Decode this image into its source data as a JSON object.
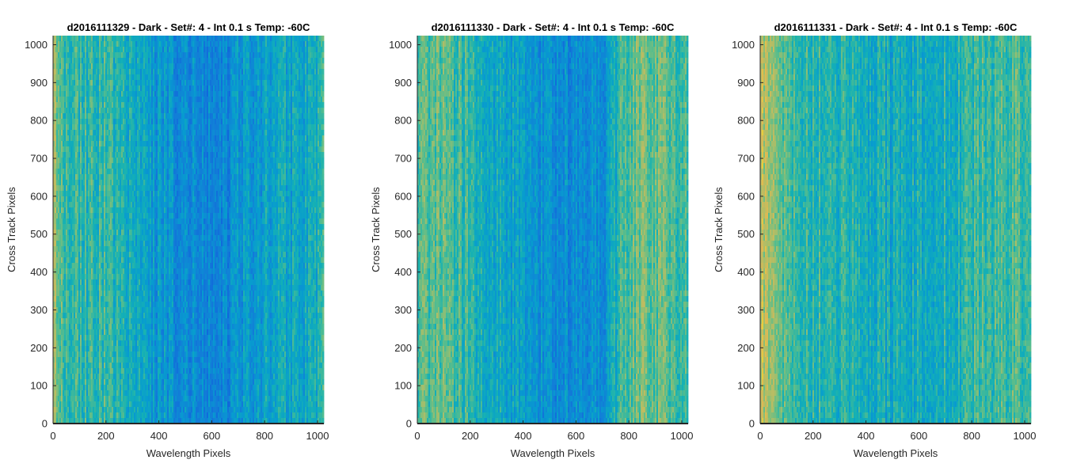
{
  "chart_data": [
    {
      "type": "heatmap",
      "title": "d2016111329 - Dark - Set#: 4 - Int 0.1 s Temp: -60C",
      "xlabel": "Wavelength Pixels",
      "ylabel": "Cross Track Pixels",
      "xlim": [
        0,
        1024
      ],
      "ylim": [
        0,
        1024
      ],
      "xticks": [
        0,
        200,
        400,
        600,
        800,
        1000
      ],
      "yticks": [
        0,
        100,
        200,
        300,
        400,
        500,
        600,
        700,
        800,
        900,
        1000
      ],
      "colormap": "parula",
      "column_profile": {
        "x": [
          0,
          30,
          100,
          200,
          300,
          400,
          500,
          600,
          650,
          700,
          800,
          900,
          1000,
          1024
        ],
        "level": [
          0.72,
          0.6,
          0.55,
          0.55,
          0.47,
          0.4,
          0.37,
          0.32,
          0.33,
          0.38,
          0.44,
          0.46,
          0.5,
          0.55
        ]
      }
    },
    {
      "type": "heatmap",
      "title": "d2016111330 - Dark - Set#: 4 - Int 0.1 s Temp: -60C",
      "xlabel": "Wavelength Pixels",
      "ylabel": "Cross Track Pixels",
      "xlim": [
        0,
        1024
      ],
      "ylim": [
        0,
        1024
      ],
      "xticks": [
        0,
        200,
        400,
        600,
        800,
        1000
      ],
      "yticks": [
        0,
        100,
        200,
        300,
        400,
        500,
        600,
        700,
        800,
        900,
        1000
      ],
      "colormap": "parula",
      "column_profile": {
        "x": [
          0,
          100,
          200,
          300,
          400,
          500,
          600,
          700,
          740,
          780,
          850,
          950,
          1024
        ],
        "level": [
          0.62,
          0.6,
          0.55,
          0.48,
          0.42,
          0.37,
          0.34,
          0.38,
          0.45,
          0.6,
          0.66,
          0.62,
          0.6
        ]
      }
    },
    {
      "type": "heatmap",
      "title": "d2016111331 - Dark - Set#: 4 - Int 0.1 s Temp: -60C",
      "xlabel": "Wavelength Pixels",
      "ylabel": "Cross Track Pixels",
      "xlim": [
        0,
        1024
      ],
      "ylim": [
        0,
        1024
      ],
      "xticks": [
        0,
        200,
        400,
        600,
        800,
        1000
      ],
      "yticks": [
        0,
        100,
        200,
        300,
        400,
        500,
        600,
        700,
        800,
        900,
        1000
      ],
      "colormap": "parula",
      "column_profile": {
        "x": [
          0,
          50,
          100,
          200,
          300,
          400,
          500,
          600,
          700,
          800,
          900,
          1000,
          1024
        ],
        "level": [
          0.78,
          0.68,
          0.6,
          0.56,
          0.52,
          0.5,
          0.47,
          0.49,
          0.52,
          0.55,
          0.58,
          0.6,
          0.62
        ]
      }
    }
  ]
}
